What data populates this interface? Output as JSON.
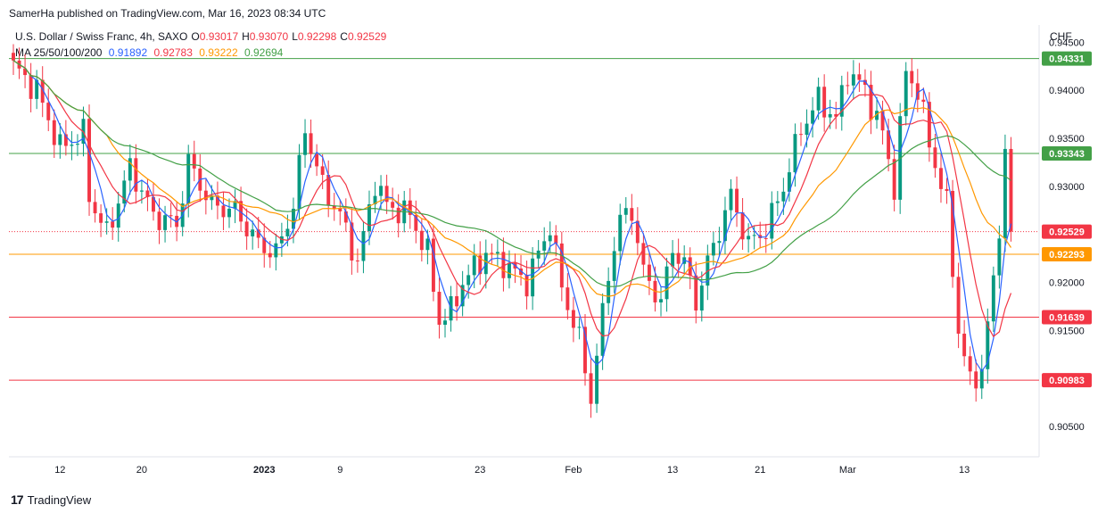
{
  "header": {
    "publisher": "SamerHa published on TradingView.com, Mar 16, 2023 08:34 UTC"
  },
  "symbol": {
    "name": "U.S. Dollar / Swiss Franc, 4h, SAXO",
    "o_label": "O",
    "o": "0.93017",
    "h_label": "H",
    "h": "0.93070",
    "l_label": "L",
    "l": "0.92298",
    "c_label": "C",
    "c": "0.92529"
  },
  "ma": {
    "label": "MA 25/50/100/200",
    "ma25": "0.91892",
    "ma50": "0.92783",
    "ma100": "0.93222",
    "ma200": "0.92694"
  },
  "currency": "CHF",
  "footer": {
    "brand": "TradingView"
  },
  "colors": {
    "up": "#089981",
    "down": "#f23645",
    "ma25": "#2962ff",
    "ma50": "#f23645",
    "ma100": "#ff9800",
    "ma200": "#43a047"
  },
  "chart_data": {
    "type": "candlestick",
    "title": "U.S. Dollar / Swiss Franc, 4h, SAXO",
    "y_axis_ticks": [
      "0.94500",
      "0.94000",
      "0.93500",
      "0.93000",
      "0.92000",
      "0.91500",
      "0.90500"
    ],
    "y_tick_values": [
      0.945,
      0.94,
      0.935,
      0.93,
      0.92,
      0.915,
      0.905
    ],
    "ylim": [
      0.9025,
      0.9468
    ],
    "x_axis_ticks": [
      "12",
      "20",
      "2023",
      "9",
      "23",
      "Feb",
      "13",
      "21",
      "Mar",
      "13"
    ],
    "x_tick_index": [
      8,
      22,
      43,
      56,
      80,
      96,
      113,
      128,
      143,
      163
    ],
    "horizontal_levels": [
      {
        "value": 0.94331,
        "label": "0.94331",
        "color": "#43a047"
      },
      {
        "value": 0.93343,
        "label": "0.93343",
        "color": "#43a047"
      },
      {
        "value": 0.92529,
        "label": "0.92529",
        "color": "#f23645",
        "style": "dotted"
      },
      {
        "value": 0.92293,
        "label": "0.92293",
        "color": "#ff9800"
      },
      {
        "value": 0.91639,
        "label": "0.91639",
        "color": "#f23645"
      },
      {
        "value": 0.90983,
        "label": "0.90983",
        "color": "#f23645"
      }
    ],
    "close_points": [
      [
        0,
        0.9425
      ],
      [
        4,
        0.94
      ],
      [
        8,
        0.934
      ],
      [
        12,
        0.9355
      ],
      [
        13,
        0.929
      ],
      [
        16,
        0.925
      ],
      [
        20,
        0.932
      ],
      [
        24,
        0.927
      ],
      [
        28,
        0.926
      ],
      [
        30,
        0.9325
      ],
      [
        34,
        0.928
      ],
      [
        38,
        0.9275
      ],
      [
        42,
        0.924
      ],
      [
        45,
        0.923
      ],
      [
        48,
        0.928
      ],
      [
        50,
        0.936
      ],
      [
        53,
        0.93
      ],
      [
        56,
        0.927
      ],
      [
        59,
        0.922
      ],
      [
        62,
        0.9305
      ],
      [
        64,
        0.928
      ],
      [
        68,
        0.927
      ],
      [
        71,
        0.923
      ],
      [
        73,
        0.916
      ],
      [
        75,
        0.917
      ],
      [
        77,
        0.92
      ],
      [
        81,
        0.923
      ],
      [
        84,
        0.922
      ],
      [
        88,
        0.92
      ],
      [
        92,
        0.926
      ],
      [
        94,
        0.9195
      ],
      [
        97,
        0.914
      ],
      [
        99,
        0.908
      ],
      [
        102,
        0.921
      ],
      [
        104,
        0.9265
      ],
      [
        106,
        0.9275
      ],
      [
        108,
        0.921
      ],
      [
        111,
        0.918
      ],
      [
        113,
        0.9235
      ],
      [
        115,
        0.922
      ],
      [
        117,
        0.918
      ],
      [
        119,
        0.922
      ],
      [
        123,
        0.929
      ],
      [
        126,
        0.924
      ],
      [
        129,
        0.9255
      ],
      [
        132,
        0.93
      ],
      [
        135,
        0.936
      ],
      [
        138,
        0.939
      ],
      [
        141,
        0.937
      ],
      [
        143,
        0.942
      ],
      [
        146,
        0.94
      ],
      [
        149,
        0.9355
      ],
      [
        151,
        0.93
      ],
      [
        153,
        0.942
      ],
      [
        155,
        0.94
      ],
      [
        157,
        0.9345
      ],
      [
        160,
        0.928
      ],
      [
        162,
        0.915
      ],
      [
        164,
        0.9095
      ],
      [
        166,
        0.911
      ],
      [
        168,
        0.92
      ],
      [
        169,
        0.926
      ],
      [
        170,
        0.9335
      ],
      [
        171,
        0.9253
      ]
    ]
  }
}
